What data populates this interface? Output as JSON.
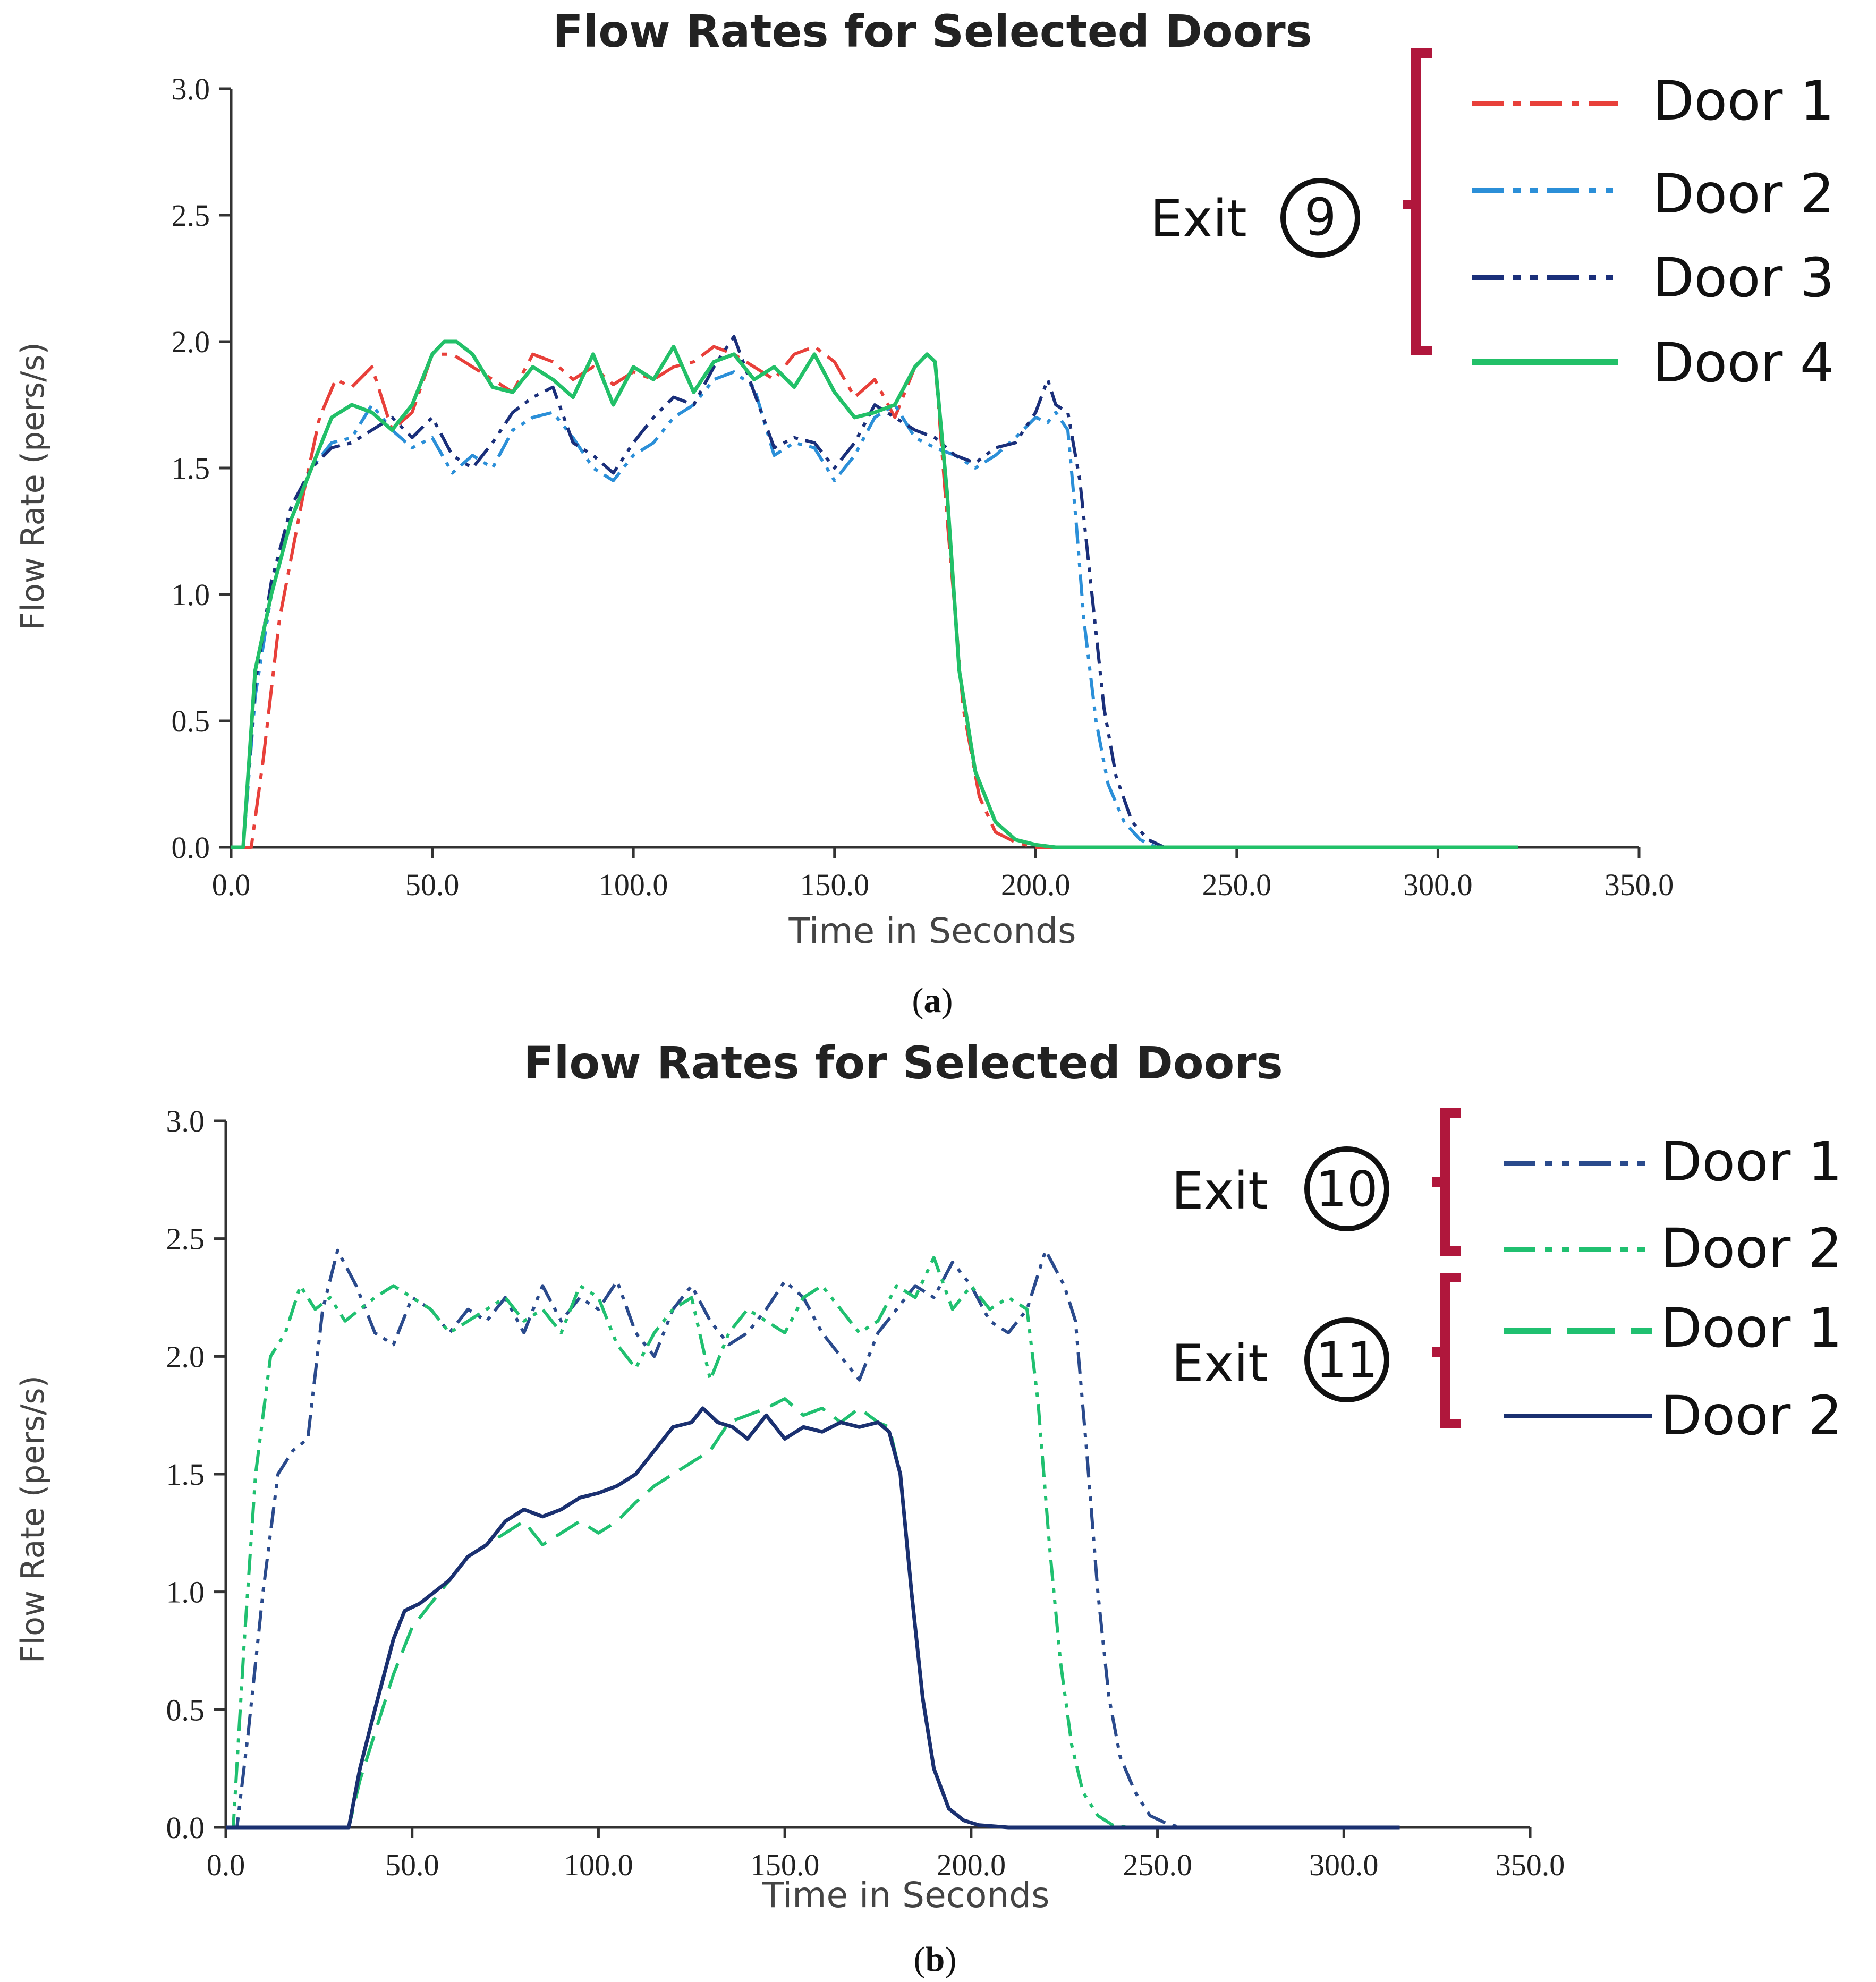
{
  "chart_data": [
    {
      "type": "line",
      "panel_label": "a",
      "title": "Flow Rates for Selected Doors",
      "xlabel": "Time in Seconds",
      "ylabel": "Flow Rate (pers/s)",
      "xlim": [
        0,
        350
      ],
      "ylim": [
        0,
        3
      ],
      "xticks": [
        "0.0",
        "50.0",
        "100.0",
        "150.0",
        "200.0",
        "250.0",
        "300.0",
        "350.0"
      ],
      "yticks": [
        "0.0",
        "0.5",
        "1.0",
        "1.5",
        "2.0",
        "2.5",
        "3.0"
      ],
      "legend_groups": [
        {
          "label": "Exit",
          "number": "9",
          "entries": [
            0,
            1,
            2,
            3
          ]
        }
      ],
      "series": [
        {
          "name": "Door 1",
          "color": "#e8403a",
          "dash": "dashdot",
          "x": [
            0,
            5,
            8,
            12,
            18,
            22,
            26,
            30,
            35,
            40,
            45,
            50,
            55,
            60,
            65,
            70,
            75,
            80,
            85,
            90,
            95,
            100,
            105,
            110,
            115,
            120,
            125,
            130,
            135,
            140,
            145,
            150,
            155,
            160,
            165,
            170,
            173,
            175,
            178,
            182,
            186,
            190,
            195,
            200,
            205,
            260,
            320
          ],
          "y": [
            0,
            0,
            0.35,
            0.9,
            1.4,
            1.7,
            1.85,
            1.82,
            1.9,
            1.65,
            1.72,
            1.95,
            1.95,
            1.9,
            1.85,
            1.8,
            1.95,
            1.92,
            1.85,
            1.9,
            1.83,
            1.88,
            1.85,
            1.9,
            1.92,
            1.98,
            1.95,
            1.9,
            1.85,
            1.95,
            1.98,
            1.92,
            1.78,
            1.85,
            1.7,
            1.9,
            1.95,
            1.92,
            1.3,
            0.55,
            0.2,
            0.06,
            0.02,
            0,
            0,
            0,
            0
          ]
        },
        {
          "name": "Door 2",
          "color": "#2b8fd8",
          "dash": "dashdotdot",
          "x": [
            0,
            3,
            6,
            10,
            15,
            20,
            25,
            30,
            35,
            40,
            45,
            50,
            55,
            60,
            65,
            70,
            75,
            80,
            85,
            90,
            95,
            100,
            105,
            110,
            115,
            120,
            125,
            130,
            135,
            140,
            145,
            150,
            155,
            160,
            165,
            170,
            175,
            180,
            185,
            190,
            195,
            200,
            203,
            205,
            208,
            210,
            212,
            215,
            218,
            222,
            226,
            230,
            235,
            260,
            320
          ],
          "y": [
            0,
            0,
            0.6,
            1.0,
            1.3,
            1.5,
            1.6,
            1.62,
            1.75,
            1.65,
            1.58,
            1.62,
            1.48,
            1.55,
            1.5,
            1.65,
            1.7,
            1.72,
            1.62,
            1.5,
            1.45,
            1.55,
            1.6,
            1.7,
            1.75,
            1.85,
            1.88,
            1.82,
            1.55,
            1.6,
            1.58,
            1.45,
            1.55,
            1.7,
            1.75,
            1.62,
            1.58,
            1.55,
            1.5,
            1.55,
            1.62,
            1.7,
            1.68,
            1.72,
            1.65,
            1.3,
            0.9,
            0.5,
            0.25,
            0.1,
            0.03,
            0,
            0,
            0,
            0
          ]
        },
        {
          "name": "Door 3",
          "color": "#1a2f7a",
          "dash": "dashdotdot",
          "x": [
            0,
            3,
            6,
            10,
            15,
            20,
            25,
            30,
            35,
            40,
            45,
            50,
            55,
            60,
            65,
            70,
            75,
            80,
            85,
            90,
            95,
            100,
            105,
            110,
            115,
            120,
            125,
            130,
            135,
            140,
            145,
            150,
            155,
            160,
            165,
            170,
            175,
            180,
            185,
            190,
            195,
            200,
            203,
            205,
            208,
            211,
            214,
            217,
            220,
            224,
            228,
            232,
            237,
            260,
            320
          ],
          "y": [
            0,
            0,
            0.65,
            1.05,
            1.35,
            1.5,
            1.58,
            1.6,
            1.65,
            1.7,
            1.62,
            1.7,
            1.55,
            1.5,
            1.6,
            1.72,
            1.78,
            1.82,
            1.6,
            1.55,
            1.48,
            1.6,
            1.7,
            1.78,
            1.75,
            1.9,
            2.02,
            1.8,
            1.58,
            1.62,
            1.6,
            1.5,
            1.6,
            1.75,
            1.7,
            1.65,
            1.62,
            1.55,
            1.52,
            1.58,
            1.6,
            1.72,
            1.85,
            1.75,
            1.72,
            1.45,
            1.0,
            0.55,
            0.28,
            0.1,
            0.03,
            0,
            0,
            0,
            0
          ]
        },
        {
          "name": "Door 4",
          "color": "#22c068",
          "dash": "solid",
          "x": [
            0,
            3,
            6,
            10,
            15,
            20,
            25,
            30,
            35,
            40,
            45,
            50,
            53,
            56,
            60,
            65,
            70,
            75,
            80,
            85,
            90,
            95,
            100,
            105,
            110,
            115,
            120,
            125,
            130,
            135,
            140,
            145,
            150,
            155,
            160,
            165,
            170,
            173,
            175,
            178,
            181,
            185,
            190,
            195,
            200,
            205,
            260,
            320
          ],
          "y": [
            0,
            0,
            0.7,
            1.0,
            1.3,
            1.5,
            1.7,
            1.75,
            1.72,
            1.65,
            1.75,
            1.95,
            2.0,
            2.0,
            1.95,
            1.82,
            1.8,
            1.9,
            1.85,
            1.78,
            1.95,
            1.75,
            1.9,
            1.85,
            1.98,
            1.8,
            1.92,
            1.95,
            1.85,
            1.9,
            1.82,
            1.95,
            1.8,
            1.7,
            1.72,
            1.75,
            1.9,
            1.95,
            1.92,
            1.4,
            0.7,
            0.3,
            0.1,
            0.03,
            0.01,
            0,
            0,
            0
          ]
        }
      ]
    },
    {
      "type": "line",
      "panel_label": "b",
      "title": "Flow Rates for Selected Doors",
      "xlabel": "Time in Seconds",
      "ylabel": "Flow Rate (pers/s)",
      "xlim": [
        0,
        350
      ],
      "ylim": [
        0,
        3
      ],
      "xticks": [
        "0.0",
        "50.0",
        "100.0",
        "150.0",
        "200.0",
        "250.0",
        "300.0",
        "350.0"
      ],
      "yticks": [
        "0.0",
        "0.5",
        "1.0",
        "1.5",
        "2.0",
        "2.5",
        "3.0"
      ],
      "legend_groups": [
        {
          "label": "Exit",
          "number": "10",
          "entries": [
            0,
            1
          ]
        },
        {
          "label": "Exit",
          "number": "11",
          "entries": [
            2,
            3
          ]
        }
      ],
      "series": [
        {
          "name": "Door 1",
          "color": "#2a4a8c",
          "dash": "dashdotdot",
          "x": [
            0,
            3,
            6,
            10,
            14,
            18,
            22,
            26,
            30,
            35,
            40,
            45,
            50,
            55,
            60,
            65,
            70,
            75,
            80,
            85,
            90,
            95,
            100,
            105,
            110,
            115,
            120,
            125,
            130,
            135,
            140,
            145,
            150,
            155,
            160,
            165,
            170,
            175,
            180,
            185,
            190,
            195,
            200,
            205,
            210,
            215,
            220,
            225,
            228,
            231,
            234,
            237,
            240,
            244,
            248,
            252,
            256,
            300,
            315
          ],
          "y": [
            0,
            0,
            0.4,
            1.0,
            1.5,
            1.6,
            1.65,
            2.2,
            2.45,
            2.3,
            2.1,
            2.05,
            2.25,
            2.2,
            2.1,
            2.2,
            2.15,
            2.25,
            2.1,
            2.3,
            2.15,
            2.25,
            2.2,
            2.32,
            2.1,
            2.0,
            2.2,
            2.3,
            2.15,
            2.05,
            2.1,
            2.2,
            2.32,
            2.25,
            2.1,
            2.0,
            1.9,
            2.1,
            2.2,
            2.3,
            2.25,
            2.4,
            2.3,
            2.15,
            2.1,
            2.2,
            2.45,
            2.3,
            2.15,
            1.6,
            1.0,
            0.55,
            0.3,
            0.15,
            0.05,
            0.02,
            0,
            0,
            0
          ]
        },
        {
          "name": "Door 2",
          "color": "#20c070",
          "dash": "dashdotdot",
          "x": [
            0,
            2,
            5,
            8,
            12,
            16,
            20,
            24,
            28,
            32,
            36,
            40,
            45,
            50,
            55,
            60,
            65,
            70,
            75,
            80,
            85,
            90,
            95,
            100,
            105,
            110,
            115,
            120,
            125,
            130,
            135,
            140,
            145,
            150,
            155,
            160,
            165,
            170,
            175,
            180,
            185,
            190,
            195,
            200,
            205,
            210,
            215,
            218,
            221,
            224,
            227,
            230,
            234,
            238,
            242,
            300,
            315
          ],
          "y": [
            0,
            0,
            0.8,
            1.5,
            2.0,
            2.1,
            2.3,
            2.2,
            2.25,
            2.15,
            2.2,
            2.25,
            2.3,
            2.25,
            2.2,
            2.1,
            2.15,
            2.2,
            2.25,
            2.15,
            2.2,
            2.1,
            2.3,
            2.25,
            2.05,
            1.95,
            2.1,
            2.2,
            2.25,
            1.9,
            2.1,
            2.2,
            2.15,
            2.1,
            2.25,
            2.3,
            2.2,
            2.1,
            2.15,
            2.3,
            2.25,
            2.42,
            2.2,
            2.3,
            2.2,
            2.25,
            2.2,
            1.8,
            1.2,
            0.7,
            0.35,
            0.15,
            0.05,
            0.01,
            0,
            0,
            0
          ]
        },
        {
          "name": "Door 1",
          "color": "#20c070",
          "dash": "dashed",
          "x": [
            0,
            30,
            33,
            36,
            40,
            45,
            50,
            55,
            60,
            65,
            70,
            75,
            80,
            85,
            90,
            95,
            100,
            105,
            110,
            115,
            120,
            125,
            130,
            135,
            140,
            145,
            150,
            155,
            160,
            165,
            170,
            175,
            178,
            181,
            184,
            187,
            190,
            194,
            198,
            202,
            210,
            300,
            315
          ],
          "y": [
            0,
            0,
            0,
            0.2,
            0.4,
            0.65,
            0.85,
            0.95,
            1.05,
            1.15,
            1.2,
            1.25,
            1.3,
            1.2,
            1.25,
            1.3,
            1.25,
            1.3,
            1.38,
            1.45,
            1.5,
            1.55,
            1.6,
            1.72,
            1.75,
            1.78,
            1.82,
            1.75,
            1.78,
            1.72,
            1.78,
            1.72,
            1.7,
            1.5,
            1.0,
            0.55,
            0.25,
            0.08,
            0.03,
            0.01,
            0,
            0,
            0
          ]
        },
        {
          "name": "Door 2",
          "color": "#1a3070",
          "dash": "solid",
          "x": [
            0,
            30,
            33,
            36,
            40,
            45,
            48,
            52,
            56,
            60,
            65,
            70,
            75,
            80,
            85,
            90,
            95,
            100,
            105,
            110,
            115,
            120,
            125,
            128,
            132,
            136,
            140,
            145,
            150,
            155,
            160,
            165,
            170,
            175,
            178,
            181,
            184,
            187,
            190,
            194,
            198,
            202,
            210,
            300,
            315
          ],
          "y": [
            0,
            0,
            0,
            0.25,
            0.5,
            0.8,
            0.92,
            0.95,
            1.0,
            1.05,
            1.15,
            1.2,
            1.3,
            1.35,
            1.32,
            1.35,
            1.4,
            1.42,
            1.45,
            1.5,
            1.6,
            1.7,
            1.72,
            1.78,
            1.72,
            1.7,
            1.65,
            1.75,
            1.65,
            1.7,
            1.68,
            1.72,
            1.7,
            1.72,
            1.68,
            1.5,
            1.0,
            0.55,
            0.25,
            0.08,
            0.03,
            0.01,
            0,
            0,
            0
          ]
        }
      ]
    }
  ],
  "panel_a": {
    "title": "Flow Rates for Selected Doors",
    "xlabel": "Time in Seconds",
    "ylabel": "Flow Rate (pers/s)",
    "caption": "a",
    "legend": {
      "exit_label": "Exit",
      "exit_number": "9",
      "entries": [
        "Door 1",
        "Door 2",
        "Door 3",
        "Door 4"
      ]
    }
  },
  "panel_b": {
    "title": "Flow Rates for Selected Doors",
    "xlabel": "Time in Seconds",
    "ylabel": "Flow Rate (pers/s)",
    "caption": "b",
    "legend": {
      "exit_label_1": "Exit",
      "exit_number_1": "10",
      "exit_label_2": "Exit",
      "exit_number_2": "11",
      "entries": [
        "Door 1",
        "Door 2",
        "Door 1",
        "Door 2"
      ]
    }
  },
  "colors": {
    "bracket": "#b0173c",
    "axis": "#333333"
  }
}
